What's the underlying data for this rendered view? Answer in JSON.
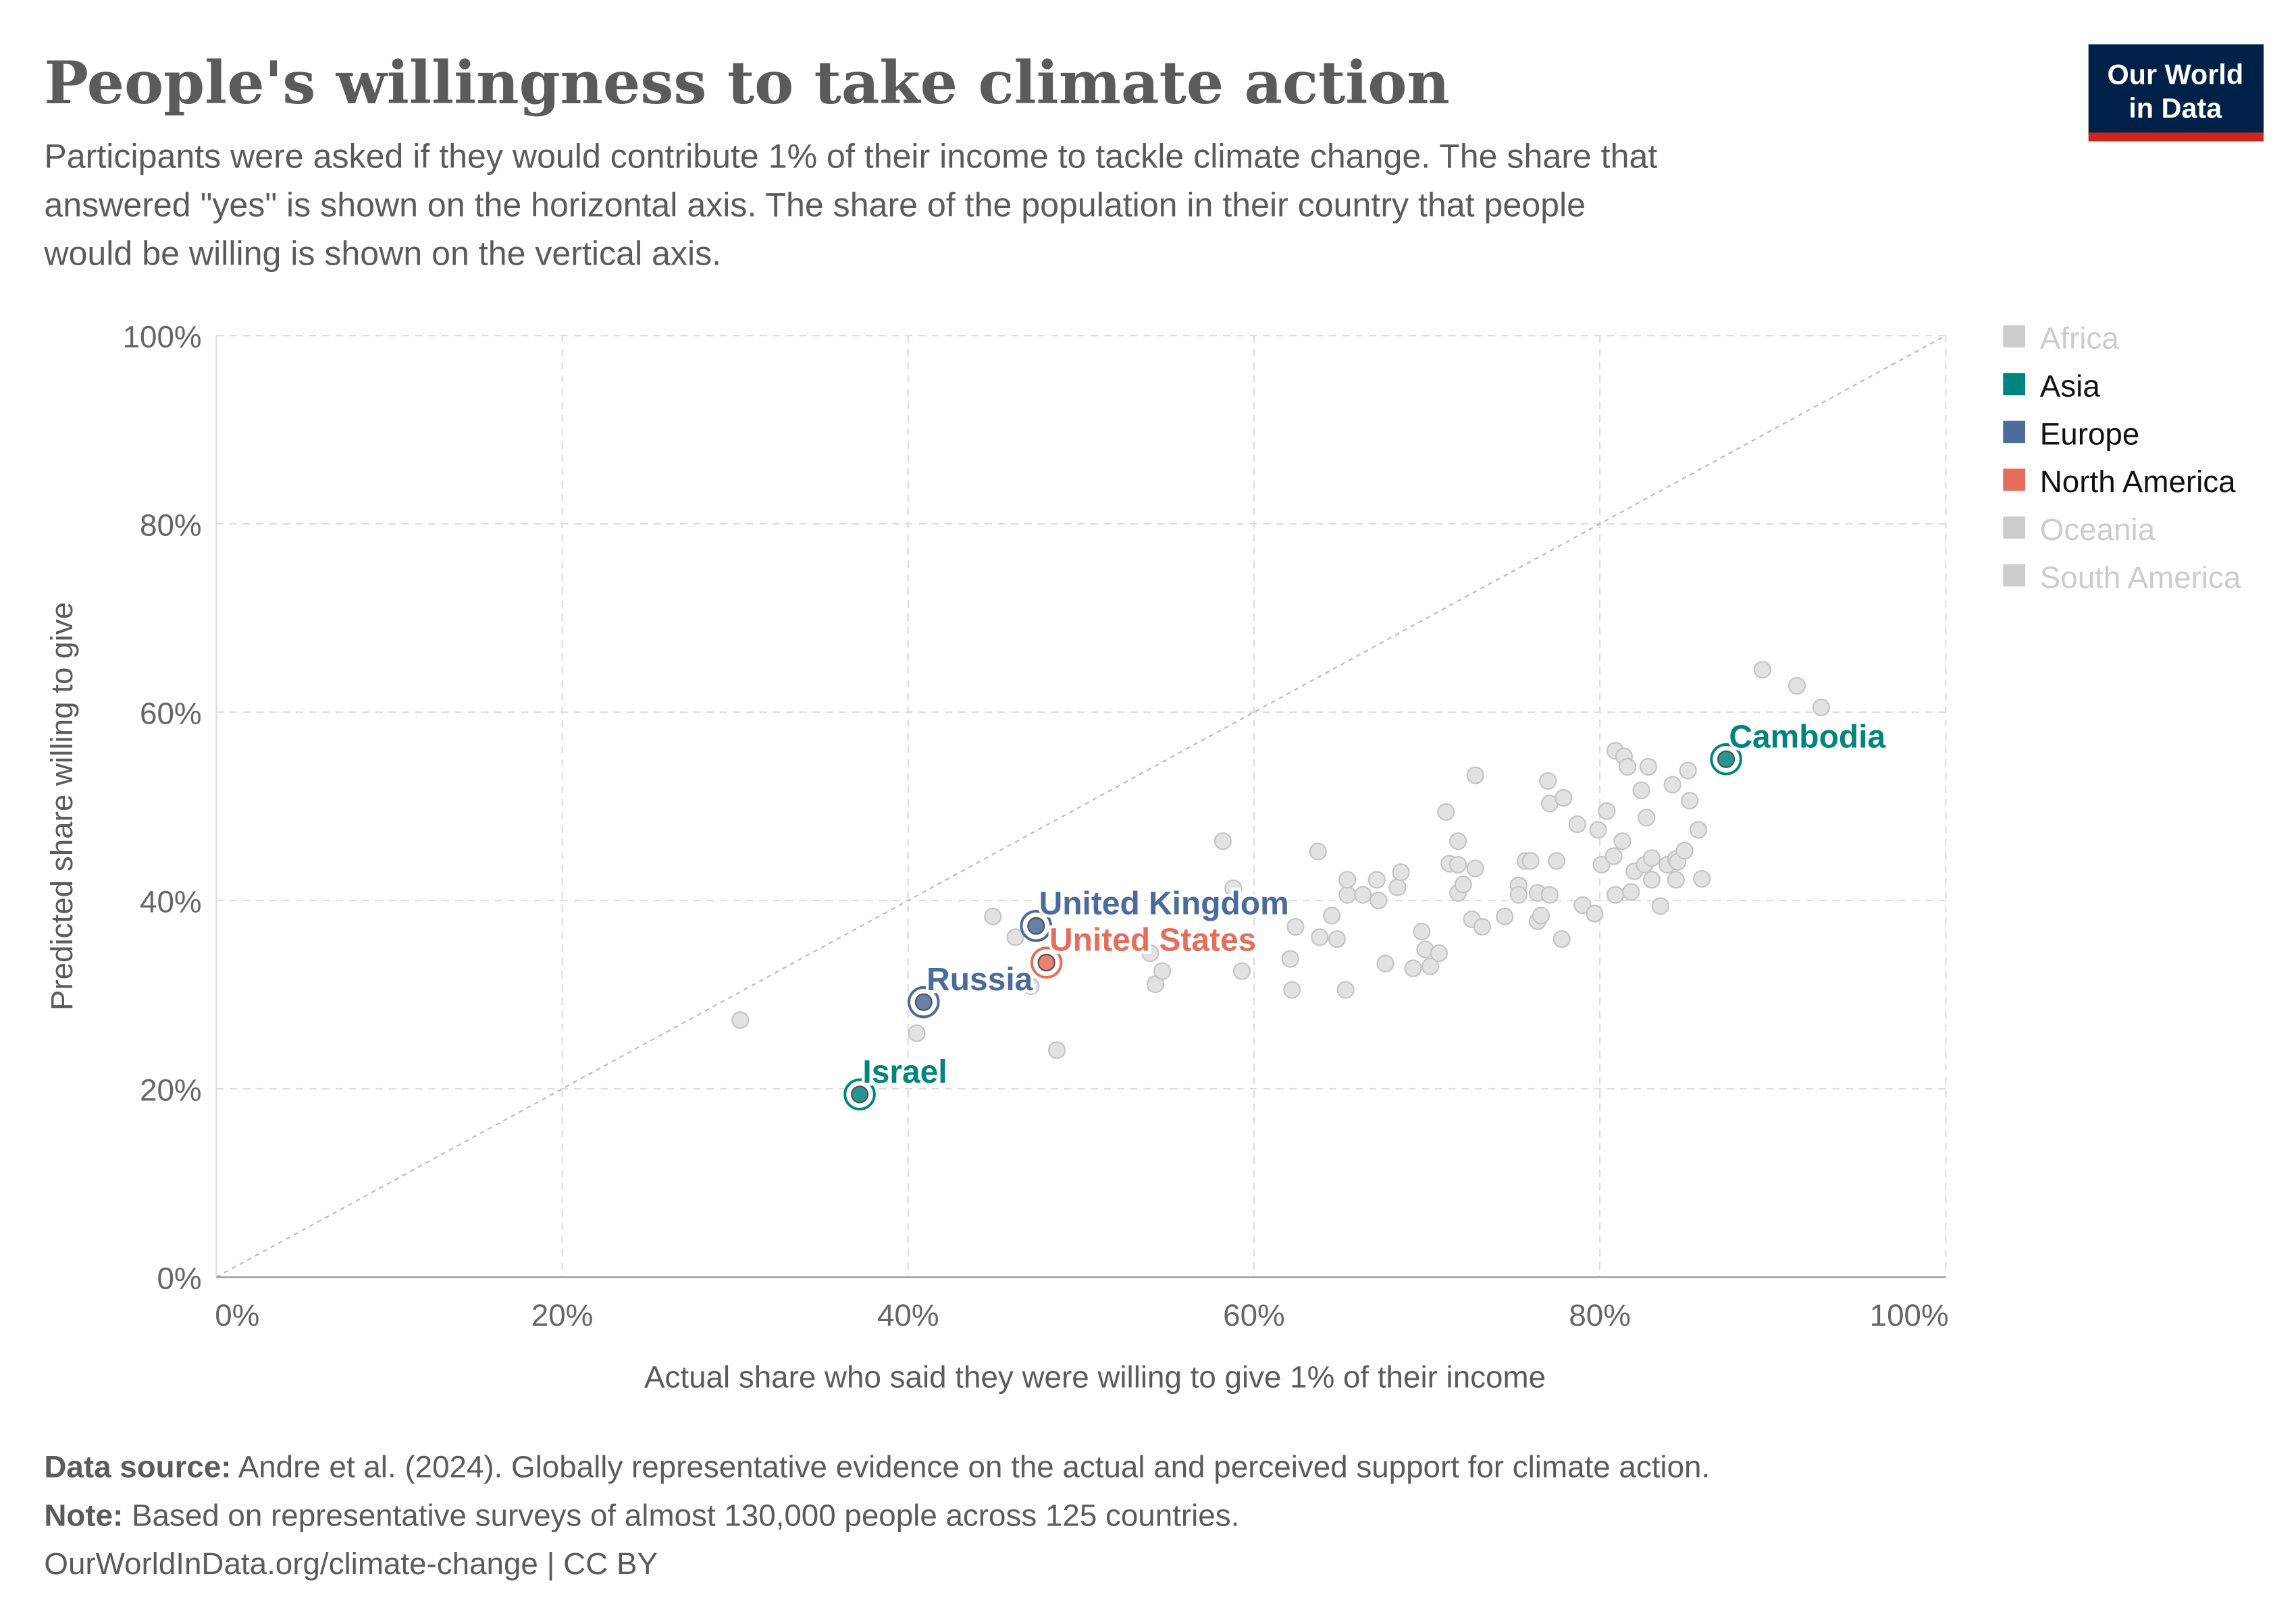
{
  "header": {
    "title": "People's willingness to take climate action",
    "subtitle_lines": [
      "Participants were asked if they would contribute 1% of their income to tackle climate change. The share that",
      "answered \"yes\" is shown on the horizontal axis. The share of the population in their country that people",
      "would be willing is shown on the vertical axis."
    ],
    "logo_lines": [
      "Our World",
      "in Data"
    ]
  },
  "chart_data": {
    "type": "scatter",
    "xlabel": "Actual share who said they were willing to give 1% of their income",
    "ylabel": "Predicted share willing to give",
    "xlim": [
      0,
      100
    ],
    "ylim": [
      0,
      100
    ],
    "x_ticks": [
      "0%",
      "20%",
      "40%",
      "60%",
      "80%",
      "100%"
    ],
    "y_ticks": [
      "0%",
      "20%",
      "40%",
      "60%",
      "80%",
      "100%"
    ],
    "grid": true,
    "diagonal_reference_line": true,
    "legend_position": "right",
    "legend": [
      {
        "name": "Africa",
        "color": "#cccccc",
        "active": false
      },
      {
        "name": "Asia",
        "color": "#00847e",
        "active": true
      },
      {
        "name": "Europe",
        "color": "#4c6a9c",
        "active": true
      },
      {
        "name": "North America",
        "color": "#e56e5a",
        "active": true
      },
      {
        "name": "Oceania",
        "color": "#cccccc",
        "active": false
      },
      {
        "name": "South America",
        "color": "#cccccc",
        "active": false
      }
    ],
    "highlighted": [
      {
        "label": "Cambodia",
        "region": "Asia",
        "x": 87.3,
        "y": 55.0
      },
      {
        "label": "United Kingdom",
        "region": "Europe",
        "x": 47.4,
        "y": 37.3
      },
      {
        "label": "United States",
        "region": "North America",
        "x": 48.0,
        "y": 33.4
      },
      {
        "label": "Russia",
        "region": "Europe",
        "x": 40.9,
        "y": 29.2
      },
      {
        "label": "Israel",
        "region": "Asia",
        "x": 37.2,
        "y": 19.4
      }
    ],
    "other_points": [
      [
        30.3,
        27.3
      ],
      [
        40.5,
        25.9
      ],
      [
        48.6,
        24.1
      ],
      [
        44.9,
        38.3
      ],
      [
        46.2,
        36.1
      ],
      [
        47.1,
        30.9
      ],
      [
        54.3,
        31.1
      ],
      [
        54.7,
        32.5
      ],
      [
        54.0,
        34.4
      ],
      [
        58.2,
        46.3
      ],
      [
        58.8,
        41.3
      ],
      [
        59.3,
        32.5
      ],
      [
        62.2,
        30.5
      ],
      [
        62.1,
        33.8
      ],
      [
        63.7,
        45.2
      ],
      [
        62.4,
        37.2
      ],
      [
        63.8,
        36.1
      ],
      [
        64.5,
        38.4
      ],
      [
        64.8,
        35.9
      ],
      [
        65.3,
        30.5
      ],
      [
        65.4,
        40.6
      ],
      [
        65.4,
        42.2
      ],
      [
        66.3,
        40.6
      ],
      [
        67.1,
        42.2
      ],
      [
        67.2,
        40.0
      ],
      [
        67.6,
        33.3
      ],
      [
        68.3,
        41.4
      ],
      [
        68.5,
        43.0
      ],
      [
        69.2,
        32.8
      ],
      [
        69.7,
        36.7
      ],
      [
        69.9,
        34.8
      ],
      [
        70.2,
        33.0
      ],
      [
        70.7,
        34.4
      ],
      [
        71.1,
        49.4
      ],
      [
        71.3,
        43.9
      ],
      [
        71.8,
        43.8
      ],
      [
        71.8,
        46.3
      ],
      [
        71.8,
        40.8
      ],
      [
        72.1,
        41.7
      ],
      [
        72.6,
        38.0
      ],
      [
        72.8,
        53.3
      ],
      [
        72.8,
        43.4
      ],
      [
        73.2,
        37.2
      ],
      [
        74.5,
        38.3
      ],
      [
        75.3,
        41.6
      ],
      [
        75.3,
        40.6
      ],
      [
        75.7,
        44.2
      ],
      [
        76.0,
        44.2
      ],
      [
        76.4,
        37.8
      ],
      [
        76.6,
        38.4
      ],
      [
        76.4,
        40.8
      ],
      [
        77.0,
        52.7
      ],
      [
        77.1,
        50.3
      ],
      [
        77.1,
        40.6
      ],
      [
        77.5,
        44.2
      ],
      [
        77.8,
        35.9
      ],
      [
        77.9,
        50.9
      ],
      [
        78.7,
        48.1
      ],
      [
        79.0,
        39.5
      ],
      [
        79.7,
        38.6
      ],
      [
        79.9,
        47.5
      ],
      [
        80.1,
        43.8
      ],
      [
        80.4,
        49.5
      ],
      [
        80.8,
        44.7
      ],
      [
        80.9,
        40.6
      ],
      [
        80.9,
        55.9
      ],
      [
        81.4,
        55.3
      ],
      [
        81.3,
        46.3
      ],
      [
        81.6,
        54.2
      ],
      [
        81.8,
        40.9
      ],
      [
        82.0,
        43.1
      ],
      [
        82.4,
        51.7
      ],
      [
        82.7,
        48.8
      ],
      [
        82.8,
        54.2
      ],
      [
        82.6,
        43.8
      ],
      [
        83.0,
        44.5
      ],
      [
        83.0,
        42.2
      ],
      [
        83.5,
        39.4
      ],
      [
        83.9,
        43.8
      ],
      [
        84.2,
        52.3
      ],
      [
        84.4,
        44.4
      ],
      [
        84.4,
        42.2
      ],
      [
        84.5,
        44.1
      ],
      [
        84.9,
        45.3
      ],
      [
        85.1,
        53.8
      ],
      [
        85.2,
        50.6
      ],
      [
        85.7,
        47.5
      ],
      [
        85.9,
        42.3
      ],
      [
        89.4,
        64.5
      ],
      [
        91.4,
        62.8
      ],
      [
        92.8,
        60.5
      ]
    ]
  },
  "footer": {
    "source_label": "Data source:",
    "source_text": " Andre et al. (2024). Globally representative evidence on the actual and perceived support for climate action.",
    "note_label": "Note:",
    "note_text": " Based on representative surveys of almost 130,000 people across 125 countries.",
    "url": "OurWorldInData.org/climate-change",
    "license": " | CC BY"
  }
}
